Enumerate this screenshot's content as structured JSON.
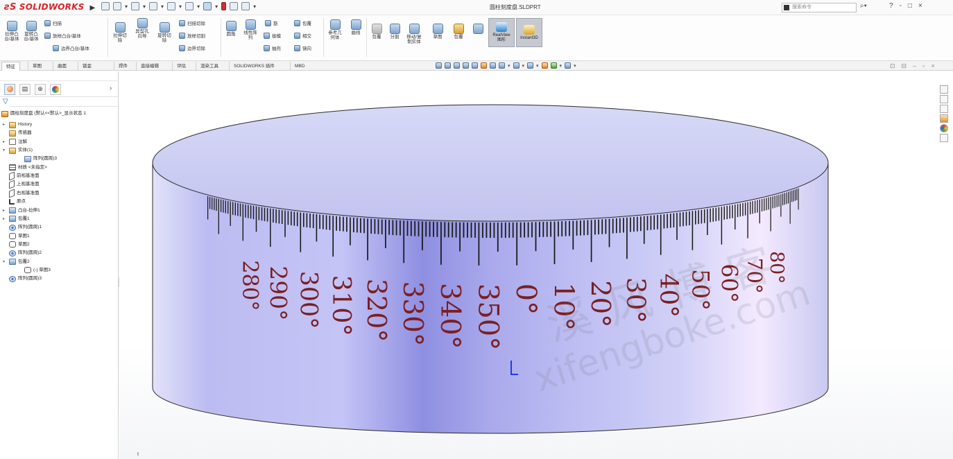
{
  "app": {
    "logo_prefix": "ƨS",
    "logo_text": "SOLIDWORKS",
    "doc_title": "圆柱刻度盘.SLDPRT",
    "search_placeholder": "搜索命令",
    "window_controls": [
      "?",
      "-",
      "□",
      "×"
    ]
  },
  "ribbon": {
    "big_buttons": [
      {
        "label": "拉伸凸\n台/基体",
        "icon": "extrude-boss-icon"
      },
      {
        "label": "旋转凸\n台/基体",
        "icon": "revolve-boss-icon"
      },
      {
        "label": "拉伸切\n除",
        "icon": "extrude-cut-icon"
      },
      {
        "label": "异型孔\n向导",
        "icon": "hole-wizard-icon"
      },
      {
        "label": "旋转切\n除",
        "icon": "revolve-cut-icon"
      },
      {
        "label": "圆角",
        "icon": "fillet-icon"
      },
      {
        "label": "线性阵\n列",
        "icon": "linear-pattern-icon"
      },
      {
        "label": "参考几\n何体",
        "icon": "reference-geometry-icon"
      },
      {
        "label": "曲线",
        "icon": "curves-icon"
      },
      {
        "label": "包覆",
        "icon": "wrap-icon"
      },
      {
        "label": "分割",
        "icon": "split-icon"
      },
      {
        "label": "移动/复\n制实体",
        "icon": "move-copy-icon"
      },
      {
        "label": "草图",
        "icon": "sketch-icon"
      },
      {
        "label": "包覆",
        "icon": "wrap2-icon"
      }
    ],
    "small_buttons": [
      {
        "label": "扫描",
        "icon": "sweep-icon"
      },
      {
        "label": "放样凸台/基体",
        "icon": "loft-icon"
      },
      {
        "label": "边界凸台/基体",
        "icon": "boundary-boss-icon"
      },
      {
        "label": "扫描切除",
        "icon": "swept-cut-icon"
      },
      {
        "label": "放样切割",
        "icon": "lofted-cut-icon"
      },
      {
        "label": "边界切除",
        "icon": "boundary-cut-icon"
      },
      {
        "label": "筋",
        "icon": "rib-icon"
      },
      {
        "label": "拔模",
        "icon": "draft-icon"
      },
      {
        "label": "抽壳",
        "icon": "shell-icon"
      },
      {
        "label": "包覆",
        "icon": "wrap-small-icon"
      },
      {
        "label": "相交",
        "icon": "intersect-icon"
      },
      {
        "label": "镜向",
        "icon": "mirror-icon"
      }
    ],
    "instant_buttons": [
      "RealView\n图形",
      "Instant3D"
    ]
  },
  "tabs": [
    "特征",
    "草图",
    "曲面",
    "钣金",
    "焊件",
    "直接编辑",
    "评估",
    "渲染工具",
    "SOLIDWORKS 插件",
    "MBD"
  ],
  "active_tab": 0,
  "tree": {
    "root": "圆柱刻度盘 (默认<<默认>_显示状态 1",
    "items": [
      {
        "label": "History",
        "icon": "history-folder-icon",
        "exp": "▸",
        "indent": 0
      },
      {
        "label": "传感器",
        "icon": "sensor-icon",
        "exp": "",
        "indent": 0
      },
      {
        "label": "注解",
        "icon": "annotations-icon",
        "exp": "▸",
        "indent": 0
      },
      {
        "label": "实体(1)",
        "icon": "solid-bodies-icon",
        "exp": "▾",
        "indent": 0
      },
      {
        "label": "阵列(圆周)3",
        "icon": "body-icon",
        "exp": "",
        "indent": 1
      },
      {
        "label": "材质 <未指定>",
        "icon": "material-icon",
        "exp": "",
        "indent": 0
      },
      {
        "label": "前视基准面",
        "icon": "front-plane-icon",
        "exp": "",
        "indent": 0
      },
      {
        "label": "上视基准面",
        "icon": "top-plane-icon",
        "exp": "",
        "indent": 0
      },
      {
        "label": "右视基准面",
        "icon": "right-plane-icon",
        "exp": "",
        "indent": 0
      },
      {
        "label": "原点",
        "icon": "origin-icon",
        "exp": "",
        "indent": 0
      },
      {
        "label": "凸台-拉伸1",
        "icon": "boss-extrude-icon",
        "exp": "▸",
        "indent": 0
      },
      {
        "label": "包覆1",
        "icon": "wrap-feature-icon",
        "exp": "▸",
        "indent": 0
      },
      {
        "label": "阵列(圆周)1",
        "icon": "circular-pattern-icon",
        "exp": "",
        "indent": 0
      },
      {
        "label": "草图1",
        "icon": "sketch-feature-icon",
        "exp": "",
        "indent": 0
      },
      {
        "label": "草图2",
        "icon": "sketch-feature-icon",
        "exp": "",
        "indent": 0
      },
      {
        "label": "阵列(圆周)2",
        "icon": "circular-pattern-icon",
        "exp": "",
        "indent": 0
      },
      {
        "label": "包覆2",
        "icon": "wrap-feature-icon",
        "exp": "▾",
        "indent": 0
      },
      {
        "label": "(-) 草图3",
        "icon": "sketch-feature-icon",
        "exp": "",
        "indent": 1
      },
      {
        "label": "阵列(圆周)3",
        "icon": "circular-pattern-icon",
        "exp": "",
        "indent": 0
      }
    ]
  },
  "dial": {
    "visible_labels": [
      "280°",
      "290°",
      "300°",
      "310°",
      "320°",
      "330°",
      "340°",
      "350°",
      "0°",
      "10°",
      "20°",
      "30°",
      "40°",
      "50°",
      "60°",
      "70°",
      "80°"
    ],
    "label_color": "#7a1f22",
    "tick_color": "#1a1a1a",
    "body_color": "#c9c9f5"
  },
  "watermark": {
    "line1": "溪风博客",
    "line2": "xifengboke.com"
  },
  "viewport": {
    "corner_t": "t"
  }
}
